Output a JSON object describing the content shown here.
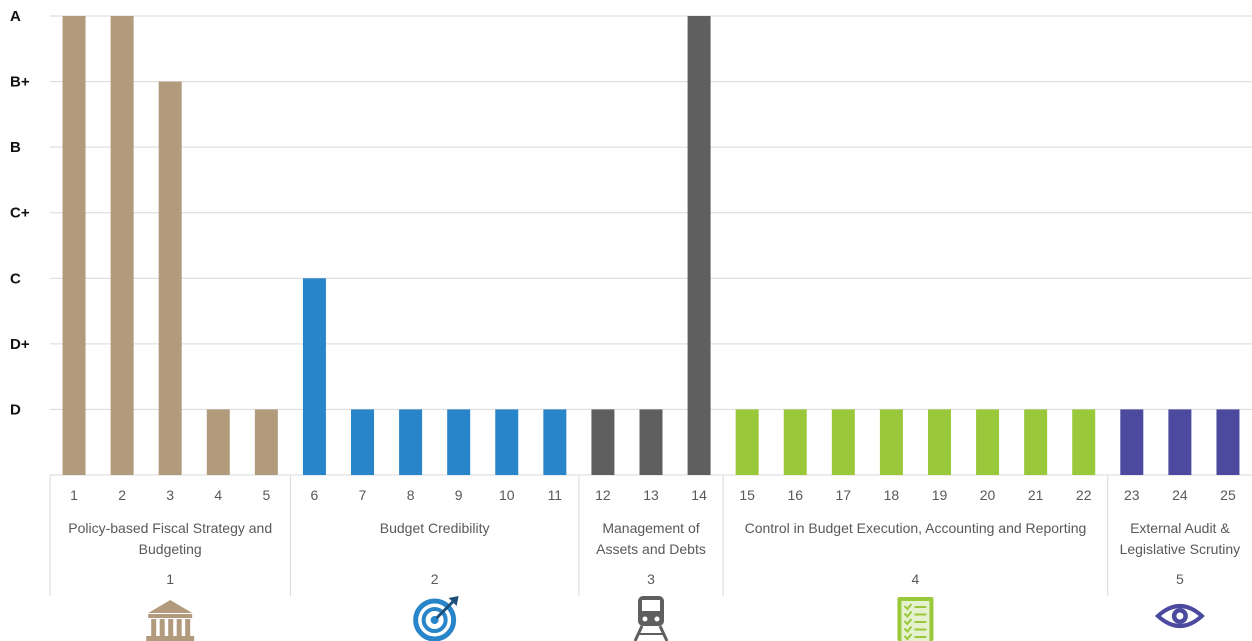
{
  "chart_data": {
    "type": "bar",
    "title": "",
    "xlabel": "",
    "ylabel": "",
    "y_levels": [
      "D",
      "D+",
      "C",
      "C+",
      "B",
      "B+",
      "A"
    ],
    "ylim": [
      0,
      7
    ],
    "grid": true,
    "categories": [
      "1",
      "2",
      "3",
      "4",
      "5",
      "6",
      "7",
      "8",
      "9",
      "10",
      "11",
      "12",
      "13",
      "14",
      "15",
      "16",
      "17",
      "18",
      "19",
      "20",
      "21",
      "22",
      "23",
      "24",
      "25"
    ],
    "values": [
      "A",
      "A",
      "B+",
      "D",
      "D",
      "C",
      "D",
      "D",
      "D",
      "D",
      "D",
      "D",
      "D",
      "A",
      "D",
      "D",
      "D",
      "D",
      "D",
      "D",
      "D",
      "D",
      "D",
      "D",
      "D"
    ],
    "groups": [
      {
        "number": "1",
        "label": [
          "Policy-based Fiscal Strategy and",
          "Budgeting"
        ],
        "start": 1,
        "end": 5,
        "color": "#b29b7c",
        "icon": "bank-building-icon"
      },
      {
        "number": "2",
        "label": [
          "Budget Credibility"
        ],
        "start": 6,
        "end": 11,
        "color": "#2985c9",
        "icon": "target-icon"
      },
      {
        "number": "3",
        "label": [
          "Management of",
          "Assets and Debts"
        ],
        "start": 12,
        "end": 14,
        "color": "#5f5f5f",
        "icon": "train-icon"
      },
      {
        "number": "4",
        "label": [
          "Control in Budget Execution, Accounting and Reporting"
        ],
        "start": 15,
        "end": 22,
        "color": "#99c93a",
        "icon": "checklist-icon"
      },
      {
        "number": "5",
        "label": [
          "External Audit &",
          "Legislative Scrutiny"
        ],
        "start": 23,
        "end": 25,
        "color": "#4b4a9e",
        "icon": "eye-icon"
      }
    ]
  }
}
